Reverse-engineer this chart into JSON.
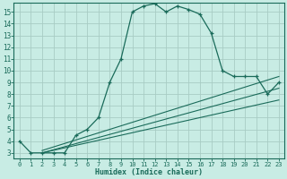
{
  "xlabel": "Humidex (Indice chaleur)",
  "bg_color": "#c8ece4",
  "line_color": "#1a6b5a",
  "grid_color": "#a8ccc4",
  "xlim": [
    -0.5,
    23.5
  ],
  "ylim": [
    2.5,
    15.8
  ],
  "xticks": [
    0,
    1,
    2,
    3,
    4,
    5,
    6,
    7,
    8,
    9,
    10,
    11,
    12,
    13,
    14,
    15,
    16,
    17,
    18,
    19,
    20,
    21,
    22,
    23
  ],
  "yticks": [
    3,
    4,
    5,
    6,
    7,
    8,
    9,
    10,
    11,
    12,
    13,
    14,
    15
  ],
  "main_x": [
    0,
    1,
    2,
    3,
    4,
    5,
    6,
    7,
    8,
    9,
    10,
    11,
    12,
    13,
    14,
    15,
    16,
    17,
    18,
    19,
    20,
    21,
    22,
    23
  ],
  "main_y": [
    4.0,
    3.0,
    3.0,
    3.0,
    3.0,
    4.5,
    5.0,
    6.0,
    9.0,
    11.0,
    15.0,
    15.5,
    15.7,
    15.0,
    15.5,
    15.2,
    14.8,
    13.2,
    10.0,
    9.5,
    9.5,
    9.5,
    8.0,
    9.0
  ],
  "line1_x": [
    2,
    23
  ],
  "line1_y": [
    3.2,
    9.5
  ],
  "line2_x": [
    2,
    23
  ],
  "line2_y": [
    3.0,
    8.5
  ],
  "line3_x": [
    2,
    23
  ],
  "line3_y": [
    3.0,
    7.5
  ]
}
